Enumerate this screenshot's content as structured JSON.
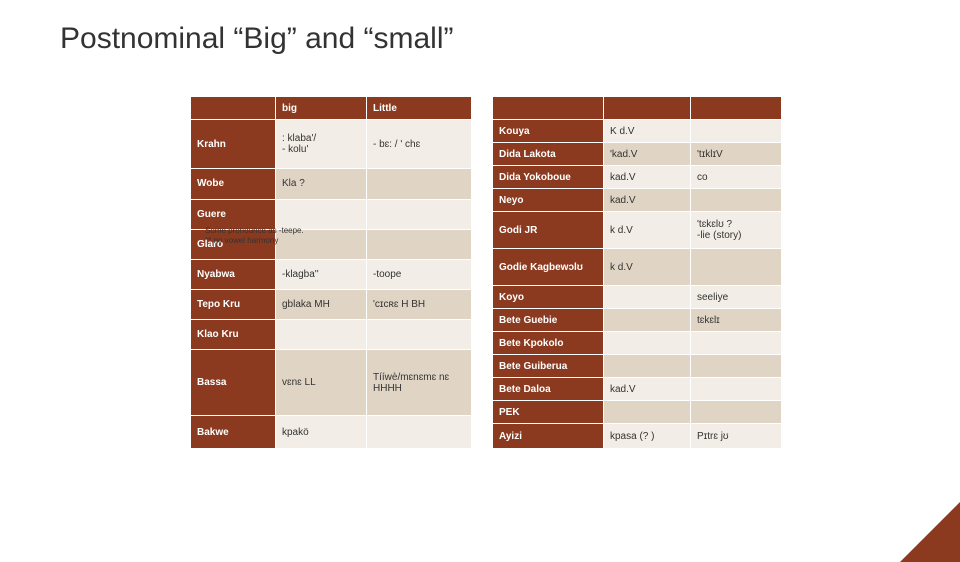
{
  "title": "Postnominal “Big” and “small”",
  "table1": {
    "headers": [
      "",
      "big",
      "Little"
    ],
    "rows": [
      {
        "lang": "Krahn",
        "big": ": klaba'/\n - kolu'",
        "little": "- bɛ: / ' chɛ"
      },
      {
        "lang": "Wobe",
        "big": "Kla ?",
        "little": ""
      },
      {
        "lang": "Guere",
        "big": "",
        "little": ""
      },
      {
        "lang": "Glaro",
        "big": "",
        "little": ""
      },
      {
        "lang": "Nyabwa",
        "big": "-klagba''",
        "little": "-toope"
      },
      {
        "lang": "Tepo Kru",
        "big": "gblaka MH",
        "little": "'cɪcʀɛ H BH"
      },
      {
        "lang": "Klao Kru",
        "big": "",
        "little": ""
      },
      {
        "lang": "Bassa",
        "big": "vɛnɛ  LL",
        "little": "Tííwè/mɛnɛmɛ nɛ\nHHHH"
      },
      {
        "lang": "Bakwe",
        "big": "kpakö",
        "little": ""
      }
    ]
  },
  "table2": {
    "headers": [
      "",
      "",
      ""
    ],
    "rows": [
      {
        "lang": "Kouya",
        "c1": "K  d.V",
        "c2": ""
      },
      {
        "lang": "Dida Lakota",
        "c1": "'kad.V",
        "c2": "'tɪklɪV"
      },
      {
        "lang": "Dida Yokoboue",
        "c1": "kad.V",
        "c2": "co"
      },
      {
        "lang": "Neyo",
        "c1": "kad.V",
        "c2": ""
      },
      {
        "lang": "Godi JR",
        "c1": "k d.V",
        "c2": "'tɛkɛlʊ ?\n-lie (story)"
      },
      {
        "lang": "Godie Kagbewɔlʊ",
        "c1": "k d.V",
        "c2": ""
      },
      {
        "lang": "Koyo",
        "c1": "",
        "c2": "seeliye"
      },
      {
        "lang": "Bete Guebie",
        "c1": "",
        "c2": "tɛkɛlɪ"
      },
      {
        "lang": "Bete Kpokolo",
        "c1": "",
        "c2": ""
      },
      {
        "lang": "Bete Guiberua",
        "c1": "",
        "c2": ""
      },
      {
        "lang": "Bete Daloa",
        "c1": "kad.V",
        "c2": ""
      },
      {
        "lang": "PEK",
        "c1": "",
        "c2": ""
      },
      {
        "lang": " Ayizi",
        "c1": "kpasa (? )",
        "c2": "Pɪtrɛ jʊ"
      }
    ]
  },
  "footnote": "Some pronounce as -teepe.\n** no vowel harmony"
}
